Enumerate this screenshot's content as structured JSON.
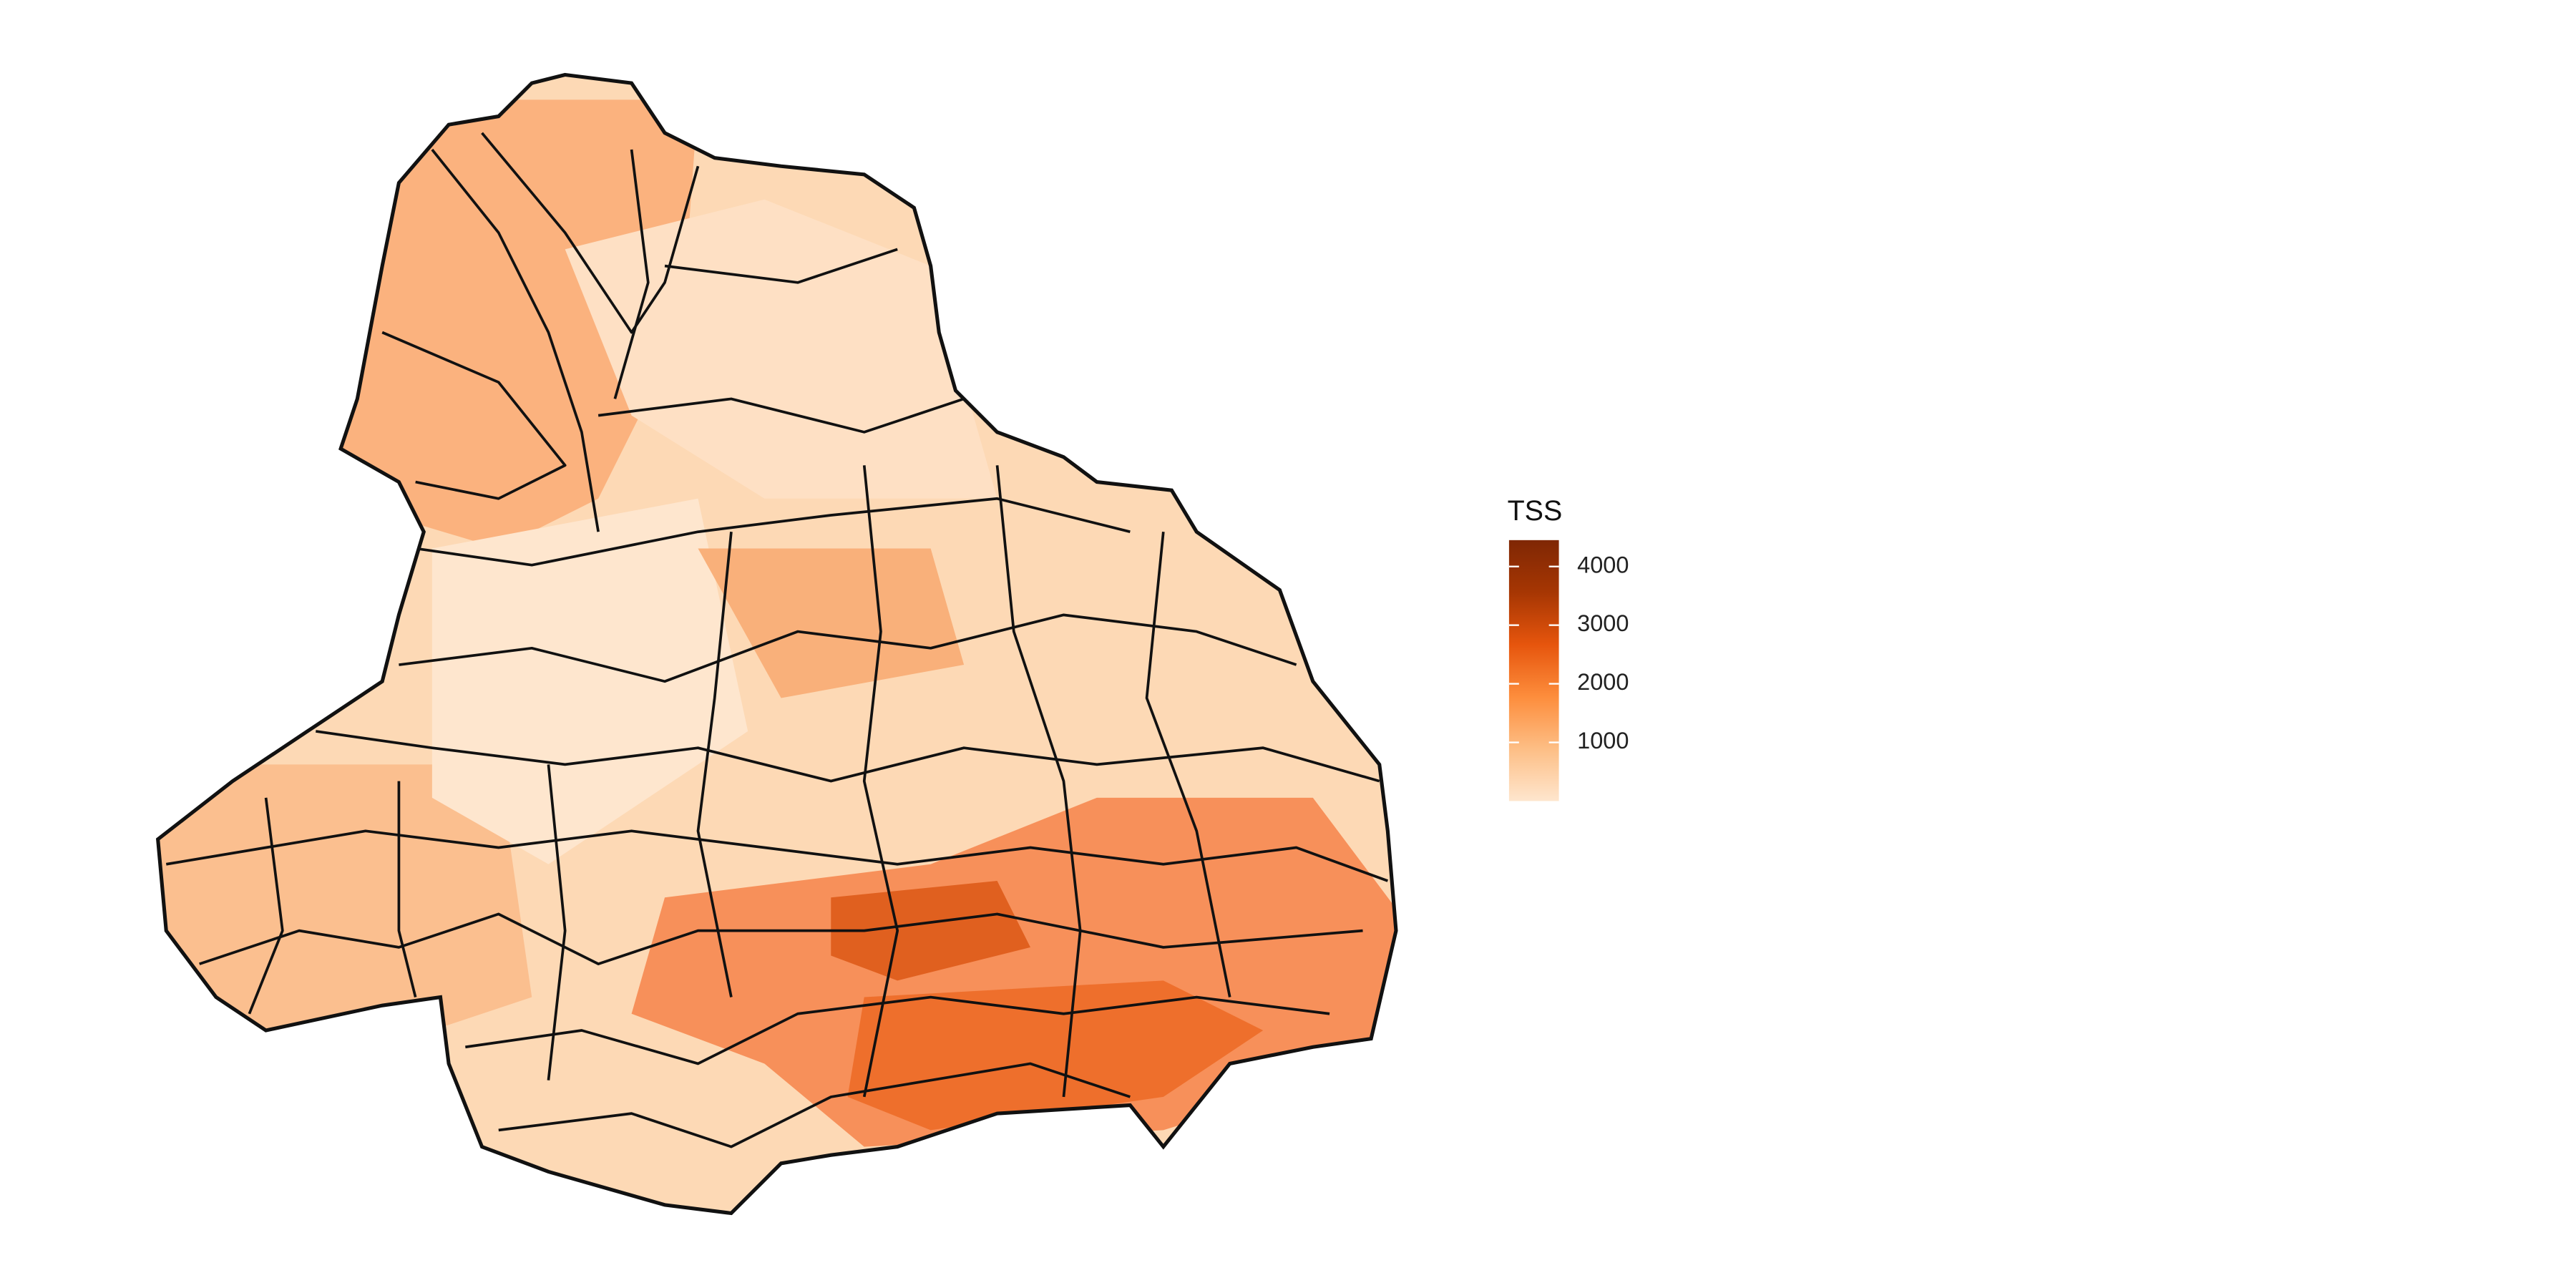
{
  "legend": {
    "title": "TSS",
    "ticks": [
      1000,
      2000,
      3000,
      4000
    ],
    "range": [
      0,
      4450
    ],
    "colorscale": [
      "#fee6ce",
      "#fdbe85",
      "#fd8d3c",
      "#e6550d",
      "#a63603",
      "#7f2704"
    ]
  }
}
